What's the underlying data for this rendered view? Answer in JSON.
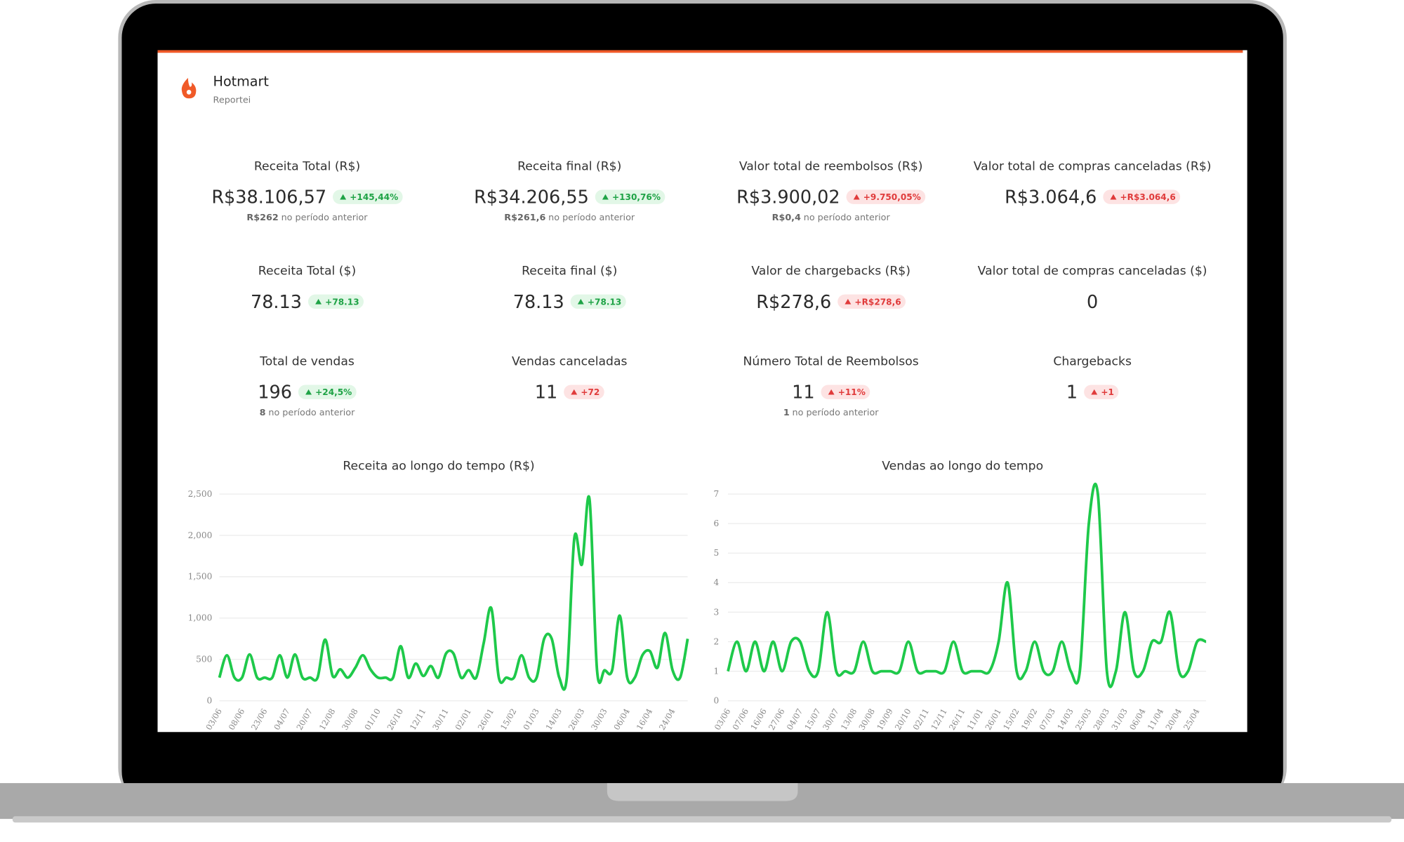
{
  "header": {
    "title": "Hotmart",
    "subtitle": "Reportei"
  },
  "metrics": [
    [
      {
        "label": "Receita Total (R$)",
        "value": "R$38.106,57",
        "delta": "+145,44%",
        "tone": "positive",
        "prev_value": "R$262",
        "prev_text": "no período anterior"
      },
      {
        "label": "Receita final (R$)",
        "value": "R$34.206,55",
        "delta": "+130,76%",
        "tone": "positive",
        "prev_value": "R$261,6",
        "prev_text": "no período anterior"
      },
      {
        "label": "Valor total de reembolsos (R$)",
        "value": "R$3.900,02",
        "delta": "+9.750,05%",
        "tone": "negative",
        "prev_value": "R$0,4",
        "prev_text": "no período anterior"
      },
      {
        "label": "Valor total de compras canceladas (R$)",
        "value": "R$3.064,6",
        "delta": "+R$3.064,6",
        "tone": "negative"
      }
    ],
    [
      {
        "label": "Receita Total ($)",
        "value": "78.13",
        "delta": "+78.13",
        "tone": "positive"
      },
      {
        "label": "Receita final ($)",
        "value": "78.13",
        "delta": "+78.13",
        "tone": "positive"
      },
      {
        "label": "Valor de chargebacks (R$)",
        "value": "R$278,6",
        "delta": "+R$278,6",
        "tone": "negative"
      },
      {
        "label": "Valor total de compras canceladas ($)",
        "value": "0"
      }
    ],
    [
      {
        "label": "Total de vendas",
        "value": "196",
        "delta": "+24,5%",
        "tone": "positive",
        "prev_value": "8",
        "prev_text": "no período anterior"
      },
      {
        "label": "Vendas canceladas",
        "value": "11",
        "delta": "+72",
        "tone": "negative"
      },
      {
        "label": "Número Total de Reembolsos",
        "value": "11",
        "delta": "+11%",
        "tone": "negative",
        "prev_value": "1",
        "prev_text": "no período anterior"
      },
      {
        "label": "Chargebacks",
        "value": "1",
        "delta": "+1",
        "tone": "negative"
      }
    ]
  ],
  "chart_data": [
    {
      "type": "line",
      "title": "Receita ao longo do tempo (R$)",
      "color": "#1ec94a",
      "grid": true,
      "ylim": [
        0,
        2500
      ],
      "yticks": [
        0,
        500,
        {
          "value": 1000,
          "label": "1,000"
        },
        {
          "value": 1500,
          "label": "1,500"
        },
        {
          "value": 2000,
          "label": "2,000"
        },
        {
          "value": 2500,
          "label": "2,500"
        }
      ],
      "categories": [
        "03/06",
        null,
        null,
        "08/06",
        null,
        null,
        "23/06",
        null,
        null,
        "04/07",
        null,
        null,
        "20/07",
        null,
        null,
        "12/08",
        null,
        null,
        "30/08",
        null,
        null,
        "01/10",
        null,
        null,
        "26/10",
        null,
        null,
        "12/11",
        null,
        null,
        "30/11",
        null,
        null,
        "02/01",
        null,
        null,
        "26/01",
        null,
        null,
        "15/02",
        null,
        null,
        "01/03",
        null,
        null,
        "14/03",
        null,
        null,
        "26/03",
        null,
        null,
        "30/03",
        null,
        null,
        "06/04",
        null,
        null,
        "16/04",
        null,
        null,
        "24/04",
        null,
        null
      ],
      "values": [
        280,
        550,
        280,
        280,
        560,
        280,
        280,
        280,
        550,
        280,
        560,
        280,
        280,
        280,
        740,
        300,
        380,
        280,
        400,
        550,
        380,
        280,
        280,
        280,
        660,
        280,
        450,
        300,
        420,
        280,
        570,
        570,
        280,
        370,
        280,
        700,
        1120,
        280,
        280,
        280,
        550,
        280,
        280,
        750,
        750,
        280,
        280,
        1970,
        1650,
        2440,
        370,
        370,
        370,
        1030,
        280,
        280,
        550,
        600,
        400,
        820,
        370,
        280,
        750
      ]
    },
    {
      "type": "line",
      "title": "Vendas ao longo do tempo",
      "color": "#1ec94a",
      "grid": true,
      "ylim": [
        0,
        7
      ],
      "yticks": [
        0,
        1,
        2,
        3,
        4,
        5,
        6,
        7
      ],
      "categories": [
        "03/06",
        null,
        "07/06",
        null,
        "16/06",
        null,
        "27/06",
        null,
        "04/07",
        null,
        "15/07",
        null,
        "30/07",
        null,
        "13/08",
        null,
        "30/08",
        null,
        "19/09",
        null,
        "20/10",
        null,
        "02/11",
        null,
        "12/11",
        null,
        "26/11",
        null,
        "11/01",
        null,
        "26/01",
        null,
        "15/02",
        null,
        "19/02",
        null,
        "07/03",
        null,
        "14/03",
        null,
        "25/03",
        null,
        "28/03",
        null,
        "31/03",
        null,
        "06/04",
        null,
        "11/04",
        null,
        "20/04",
        null,
        "25/04",
        null
      ],
      "values": [
        1,
        2,
        1,
        2,
        1,
        2,
        1,
        2,
        2,
        1,
        1,
        3,
        1,
        1,
        1,
        2,
        1,
        1,
        1,
        1,
        2,
        1,
        1,
        1,
        1,
        2,
        1,
        1,
        1,
        1,
        2,
        4,
        1,
        1,
        2,
        1,
        1,
        2,
        1,
        1,
        6,
        7,
        1,
        1,
        3,
        1,
        1,
        2,
        2,
        3,
        1,
        1,
        2,
        2
      ]
    }
  ]
}
